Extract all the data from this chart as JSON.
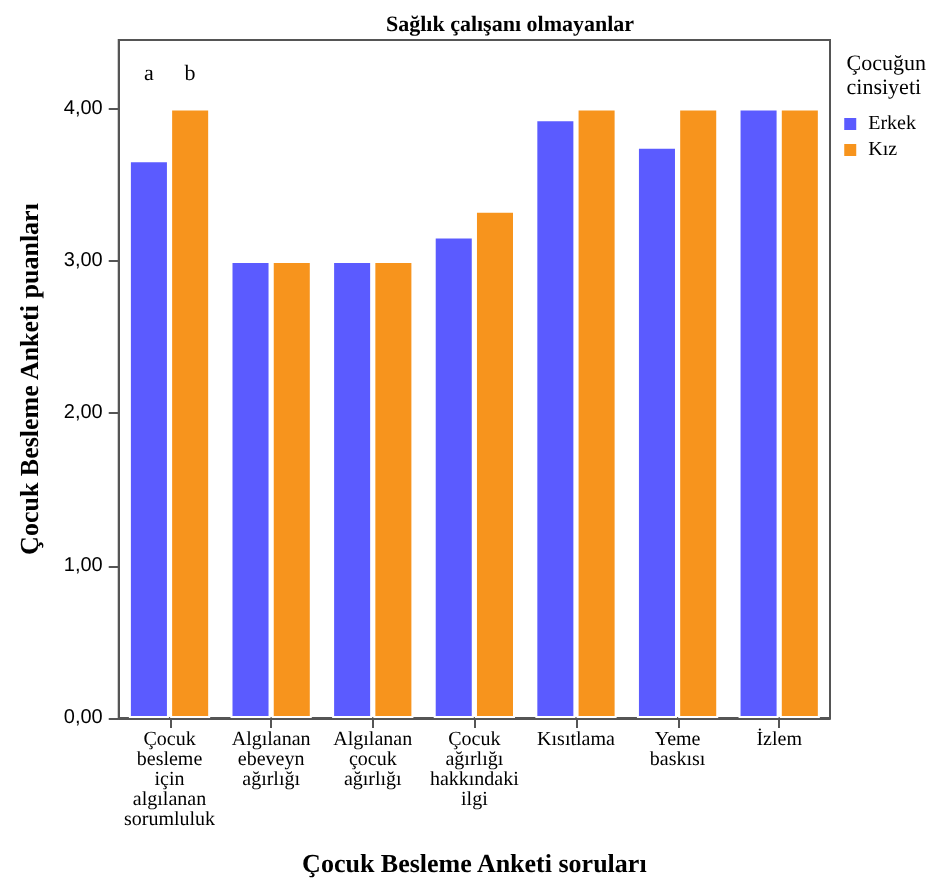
{
  "chart_data": {
    "type": "bar",
    "title": "Sağlık çalışanı olmayanlar",
    "xlabel": "Çocuk Besleme Anketi soruları",
    "ylabel": "Çocuk Besleme Anketi puanları",
    "legend_title": "Çocuğun cinsiyeti",
    "categories": [
      "Çocuk besleme için algılanan sorumluluk",
      "Algılanan ebeveyn ağırlığı",
      "Algılanan çocuk ağırlığı",
      "Çocuk ağırlığı hakkındaki ilgi",
      "Kısıtlama",
      "Yeme baskısı",
      "İzlem"
    ],
    "series": [
      {
        "name": "Erkek",
        "color": "#5b5bff",
        "values": [
          3.66,
          3,
          3,
          3.16,
          3.93,
          3.75,
          4
        ]
      },
      {
        "name": "Kız",
        "color": "#f7941d",
        "values": [
          4,
          3,
          3,
          3.33,
          4,
          4,
          4
        ]
      }
    ],
    "annotations": [
      "a",
      "b"
    ],
    "ylim": [
      0,
      4.45
    ],
    "yticks": [
      {
        "value": 0,
        "label": "0,00"
      },
      {
        "value": 1,
        "label": "1,00"
      },
      {
        "value": 2,
        "label": "2,00"
      },
      {
        "value": 3,
        "label": "3,00"
      },
      {
        "value": 4,
        "label": "4,00"
      }
    ],
    "grid": false,
    "legend": "top right"
  }
}
